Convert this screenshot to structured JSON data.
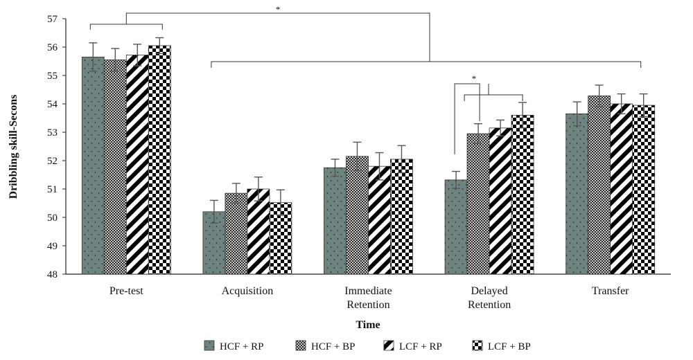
{
  "chart_data": {
    "type": "bar",
    "title": "",
    "xlabel": "Time",
    "ylabel": "Dribbling skill-Secons",
    "ylim": [
      48,
      57
    ],
    "yticks": [
      "48",
      "49",
      "50",
      "51",
      "52",
      "53",
      "54",
      "55",
      "56",
      "57"
    ],
    "categories": [
      [
        "Pre-test"
      ],
      [
        "Acquisition"
      ],
      [
        "Immediate",
        "Retention"
      ],
      [
        "Delayed",
        "Retention"
      ],
      [
        "Transfer"
      ]
    ],
    "series": [
      {
        "name": "HCF + RP",
        "values": [
          55.65,
          50.2,
          51.75,
          51.32,
          53.65
        ],
        "errors": [
          0.5,
          0.4,
          0.3,
          0.3,
          0.42
        ]
      },
      {
        "name": "HCF + BP",
        "values": [
          55.55,
          50.85,
          52.15,
          52.95,
          54.28
        ],
        "errors": [
          0.4,
          0.35,
          0.5,
          0.35,
          0.38
        ]
      },
      {
        "name": "LCF + RP",
        "values": [
          55.72,
          51.0,
          51.8,
          53.15,
          54.0
        ],
        "errors": [
          0.38,
          0.42,
          0.48,
          0.28,
          0.35
        ]
      },
      {
        "name": "LCF + BP",
        "values": [
          56.05,
          50.52,
          52.05,
          53.6,
          53.95
        ],
        "errors": [
          0.28,
          0.45,
          0.48,
          0.45,
          0.4
        ]
      }
    ],
    "significance": [
      {
        "label": "*",
        "comparison": "Pre-test vs all later time points"
      },
      {
        "label": "*",
        "comparison": "Delayed Retention: HCF + RP vs other groups"
      }
    ],
    "colors": {
      "hcf_rp_fill": "#6f8480",
      "hcf_bp_fill": "#7a7a7a",
      "lcf_rp_fill": "#ffffff",
      "lcf_bp_fill": "#ffffff",
      "error_bar": "#555555",
      "axis": "#222222"
    },
    "patterns": [
      "dots",
      "crosshatch",
      "diagonal-stripes",
      "checkerboard"
    ],
    "grid": false,
    "legend_position": "bottom"
  }
}
